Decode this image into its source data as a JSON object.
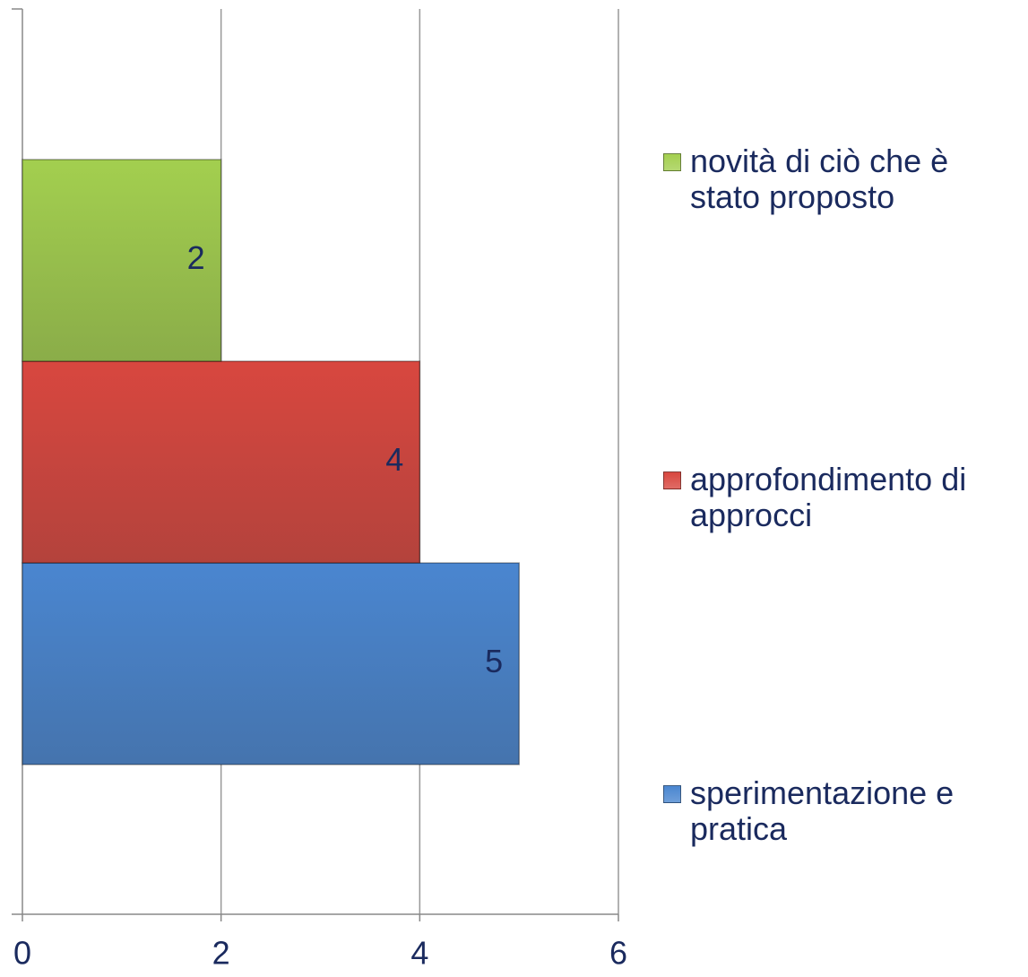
{
  "chart_data": {
    "type": "bar",
    "orientation": "horizontal",
    "categories": [
      null
    ],
    "series": [
      {
        "name": "sperimentazione e pratica",
        "color": "#4a86d0",
        "values": [
          5
        ]
      },
      {
        "name": "approfondimento di approcci",
        "color": "#d8473f",
        "values": [
          4
        ]
      },
      {
        "name": "novità di ciò che è stato proposto",
        "color": "#a3cf4f",
        "values": [
          2
        ]
      }
    ],
    "xlim": [
      0,
      6
    ],
    "xticks": [
      0,
      2,
      4,
      6
    ],
    "grid": true,
    "legend": "right",
    "data_labels": true
  }
}
